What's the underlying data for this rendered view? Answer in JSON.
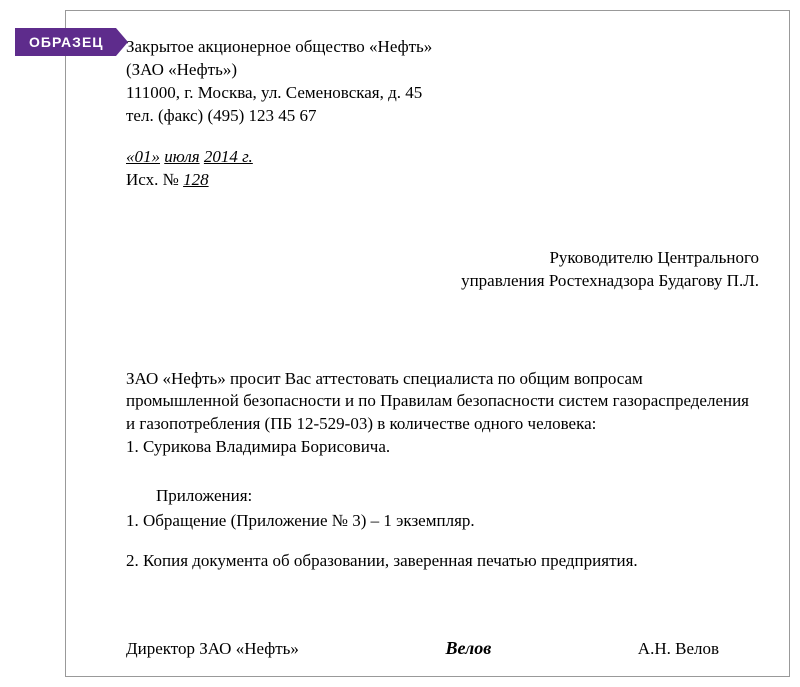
{
  "badge": {
    "label": "ОБРАЗЕЦ"
  },
  "header": {
    "line1": "Закрытое акционерное общество «Нефть»",
    "line2": "(ЗАО «Нефть»)",
    "line3": "111000, г. Москва, ул. Семеновская, д. 45",
    "line4": "тел. (факс) (495) 123 45 67"
  },
  "dateRef": {
    "day": "«01»",
    "month": "июля",
    "year": "2014 г.",
    "outgoing_prefix": "Исх. № ",
    "outgoing_number": "128"
  },
  "addressee": {
    "line1": "Руководителю Центрального",
    "line2": "управления Ростехнадзора Будагову П.Л."
  },
  "body": {
    "para1": "ЗАО «Нефть» просит Вас аттестовать специалиста по общим вопросам промышленной безопасности и по Правилам безопасности систем газораспределения и газопотребления (ПБ 12-529-03) в количестве одного человека:",
    "list1": "1. Сурикова Владимира Борисовича."
  },
  "attachments": {
    "title": "Приложения:",
    "item1": "1. Обращение (Приложение № 3) – 1 экземпляр.",
    "item2": "2. Копия документа об образовании, заверенная печатью предприятия."
  },
  "signature": {
    "title": "Директор ЗАО «Нефть»",
    "sign": "Велов",
    "name": "А.Н. Велов"
  },
  "styles": {
    "badge_bg": "#5e2c8c",
    "badge_text": "#ffffff",
    "text_color": "#000000",
    "border_color": "#999999",
    "base_fontsize": 17
  }
}
